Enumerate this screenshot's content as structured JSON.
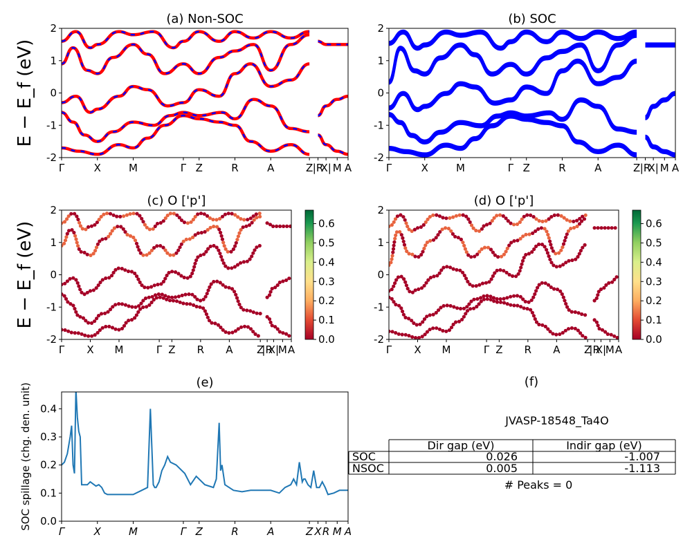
{
  "jid": "JVASP-18548_Ta4O",
  "colors": {
    "nonsoc_line": "#ff0000",
    "nonsoc_dash": "#0000ff",
    "soc_line": "#0000ff",
    "spillage_line": "#1f77b4"
  },
  "band_ylabel": "E − E_f (eV)",
  "kpath": {
    "labels": [
      "Γ",
      "X",
      "M",
      "Γ",
      "Z",
      "R",
      "A",
      "Z",
      "|R",
      "X|",
      "M",
      "A"
    ],
    "positions": [
      0.0,
      0.125,
      0.25,
      0.425,
      0.48,
      0.605,
      0.73,
      0.865,
      0.895,
      0.923,
      0.962,
      1.0
    ]
  },
  "chart_data": [
    {
      "type": "line",
      "panel": "a",
      "title": "(a) Non-SOC",
      "xlabel": "",
      "ylabel": "E − E_f (eV)",
      "ylim": [
        -2,
        2
      ],
      "yticks": [
        -2,
        -1,
        0,
        1,
        2
      ],
      "series": [
        {
          "name": "",
          "style": "red solid + blue dashed overlay",
          "bands": [
            [
              [
                0,
                -1.7
              ],
              [
                0.06,
                -1.8
              ],
              [
                0.125,
                -1.9
              ],
              [
                0.2,
                -1.6
              ],
              [
                0.25,
                -1.7
              ],
              [
                0.3,
                -1.4
              ],
              [
                0.36,
                -1.0
              ],
              [
                0.425,
                -0.7
              ],
              [
                0.48,
                -0.8
              ],
              [
                0.55,
                -0.9
              ],
              [
                0.605,
                -1.0
              ],
              [
                0.66,
                -1.5
              ],
              [
                0.73,
                -1.8
              ],
              [
                0.8,
                -1.6
              ],
              [
                0.865,
                -1.9
              ]
            ],
            [
              [
                0,
                -0.6
              ],
              [
                0.04,
                -0.9
              ],
              [
                0.08,
                -1.3
              ],
              [
                0.125,
                -1.5
              ],
              [
                0.18,
                -1.2
              ],
              [
                0.25,
                -0.9
              ],
              [
                0.32,
                -1.0
              ],
              [
                0.38,
                -0.7
              ],
              [
                0.425,
                -0.6
              ],
              [
                0.48,
                -0.7
              ],
              [
                0.56,
                -0.6
              ],
              [
                0.605,
                -0.8
              ],
              [
                0.67,
                -0.2
              ],
              [
                0.73,
                -0.4
              ],
              [
                0.8,
                -1.1
              ],
              [
                0.865,
                -1.2
              ]
            ],
            [
              [
                0,
                -0.3
              ],
              [
                0.05,
                -0.1
              ],
              [
                0.1,
                -0.6
              ],
              [
                0.125,
                -0.5
              ],
              [
                0.2,
                -0.1
              ],
              [
                0.25,
                0.2
              ],
              [
                0.3,
                0.1
              ],
              [
                0.37,
                -0.4
              ],
              [
                0.425,
                -0.3
              ],
              [
                0.48,
                0.1
              ],
              [
                0.55,
                -0.1
              ],
              [
                0.605,
                0.6
              ],
              [
                0.66,
                0.9
              ],
              [
                0.73,
                0.2
              ],
              [
                0.8,
                0.4
              ],
              [
                0.865,
                0.9
              ]
            ],
            [
              [
                0,
                0.9
              ],
              [
                0.04,
                1.4
              ],
              [
                0.09,
                0.7
              ],
              [
                0.125,
                0.6
              ],
              [
                0.18,
                1.1
              ],
              [
                0.25,
                1.5
              ],
              [
                0.3,
                1.2
              ],
              [
                0.36,
                0.6
              ],
              [
                0.425,
                0.9
              ],
              [
                0.48,
                0.6
              ],
              [
                0.55,
                1.1
              ],
              [
                0.605,
                1.3
              ],
              [
                0.67,
                1.5
              ],
              [
                0.73,
                0.7
              ],
              [
                0.8,
                1.5
              ],
              [
                0.865,
                1.8
              ]
            ],
            [
              [
                0,
                1.6
              ],
              [
                0.05,
                1.9
              ],
              [
                0.1,
                1.4
              ],
              [
                0.125,
                1.5
              ],
              [
                0.2,
                1.9
              ],
              [
                0.25,
                1.8
              ],
              [
                0.32,
                1.9
              ],
              [
                0.39,
                1.4
              ],
              [
                0.425,
                1.6
              ],
              [
                0.48,
                1.9
              ],
              [
                0.55,
                1.6
              ],
              [
                0.605,
                1.9
              ],
              [
                0.67,
                1.7
              ],
              [
                0.73,
                1.9
              ],
              [
                0.8,
                1.7
              ],
              [
                0.865,
                1.9
              ]
            ],
            [
              [
                0.895,
                -1.3
              ],
              [
                0.923,
                -1.6
              ],
              [
                0.962,
                -1.8
              ],
              [
                1.0,
                -1.9
              ]
            ],
            [
              [
                0.895,
                -0.7
              ],
              [
                0.923,
                -0.4
              ],
              [
                0.962,
                -0.2
              ],
              [
                1.0,
                -0.1
              ]
            ],
            [
              [
                0.895,
                1.6
              ],
              [
                0.923,
                1.5
              ],
              [
                0.962,
                1.5
              ],
              [
                1.0,
                1.5
              ]
            ]
          ]
        }
      ]
    },
    {
      "type": "line",
      "panel": "b",
      "title": "(b) SOC",
      "xlabel": "",
      "ylabel": "",
      "ylim": [
        -2,
        2
      ],
      "yticks": [
        -2,
        -1,
        0,
        1,
        2
      ],
      "series": [
        {
          "name": "",
          "style": "blue solid",
          "bands": [
            [
              [
                0,
                -1.75
              ],
              [
                0.06,
                -1.85
              ],
              [
                0.125,
                -1.95
              ],
              [
                0.2,
                -1.65
              ],
              [
                0.25,
                -1.75
              ],
              [
                0.3,
                -1.45
              ],
              [
                0.36,
                -1.05
              ],
              [
                0.425,
                -0.75
              ],
              [
                0.48,
                -0.85
              ],
              [
                0.55,
                -0.95
              ],
              [
                0.605,
                -1.05
              ],
              [
                0.66,
                -1.55
              ],
              [
                0.73,
                -1.85
              ],
              [
                0.8,
                -1.65
              ],
              [
                0.865,
                -1.95
              ]
            ],
            [
              [
                0,
                -0.7
              ],
              [
                0.04,
                -0.95
              ],
              [
                0.08,
                -1.35
              ],
              [
                0.125,
                -1.55
              ],
              [
                0.18,
                -1.25
              ],
              [
                0.25,
                -0.95
              ],
              [
                0.32,
                -1.05
              ],
              [
                0.38,
                -0.75
              ],
              [
                0.425,
                -0.65
              ],
              [
                0.48,
                -0.75
              ],
              [
                0.56,
                -0.65
              ],
              [
                0.605,
                -0.85
              ],
              [
                0.67,
                -0.25
              ],
              [
                0.73,
                -0.45
              ],
              [
                0.8,
                -1.15
              ],
              [
                0.865,
                -1.25
              ]
            ],
            [
              [
                0,
                -0.5
              ],
              [
                0.05,
                -0.05
              ],
              [
                0.1,
                -0.55
              ],
              [
                0.125,
                -0.45
              ],
              [
                0.2,
                -0.05
              ],
              [
                0.25,
                0.25
              ],
              [
                0.3,
                0.15
              ],
              [
                0.37,
                -0.35
              ],
              [
                0.425,
                -0.25
              ],
              [
                0.48,
                0.15
              ],
              [
                0.55,
                -0.05
              ],
              [
                0.605,
                0.65
              ],
              [
                0.66,
                0.95
              ],
              [
                0.73,
                0.25
              ],
              [
                0.8,
                0.45
              ],
              [
                0.865,
                0.95
              ]
            ],
            [
              [
                0,
                0.3
              ],
              [
                0.04,
                1.35
              ],
              [
                0.09,
                0.65
              ],
              [
                0.125,
                0.55
              ],
              [
                0.18,
                1.05
              ],
              [
                0.25,
                1.45
              ],
              [
                0.3,
                1.15
              ],
              [
                0.36,
                0.55
              ],
              [
                0.425,
                0.85
              ],
              [
                0.48,
                0.55
              ],
              [
                0.55,
                1.05
              ],
              [
                0.605,
                1.25
              ],
              [
                0.67,
                1.45
              ],
              [
                0.73,
                0.65
              ],
              [
                0.8,
                1.45
              ],
              [
                0.865,
                1.75
              ]
            ],
            [
              [
                0,
                1.5
              ],
              [
                0.05,
                1.85
              ],
              [
                0.1,
                1.35
              ],
              [
                0.125,
                1.45
              ],
              [
                0.2,
                1.85
              ],
              [
                0.25,
                1.75
              ],
              [
                0.32,
                1.85
              ],
              [
                0.39,
                1.35
              ],
              [
                0.425,
                1.55
              ],
              [
                0.48,
                1.85
              ],
              [
                0.55,
                1.55
              ],
              [
                0.605,
                1.85
              ],
              [
                0.67,
                1.65
              ],
              [
                0.73,
                1.85
              ],
              [
                0.8,
                1.65
              ],
              [
                0.865,
                1.85
              ]
            ],
            [
              [
                0.895,
                -1.4
              ],
              [
                0.923,
                -1.7
              ],
              [
                0.962,
                -1.85
              ],
              [
                1.0,
                -1.95
              ]
            ],
            [
              [
                0.895,
                -0.8
              ],
              [
                0.923,
                -0.45
              ],
              [
                0.962,
                -0.25
              ],
              [
                1.0,
                -0.05
              ]
            ],
            [
              [
                0.895,
                1.45
              ],
              [
                0.923,
                1.45
              ],
              [
                0.962,
                1.45
              ],
              [
                1.0,
                1.45
              ]
            ]
          ]
        }
      ]
    },
    {
      "type": "scatter",
      "panel": "c",
      "title": "(c)  O ['p']",
      "xlabel": "",
      "ylabel": "E − E_f (eV)",
      "ylim": [
        -2,
        2
      ],
      "yticks": [
        -2,
        -1,
        0,
        1,
        2
      ],
      "colorbar": {
        "min": 0.0,
        "max": 0.67,
        "ticks": [
          "0.0",
          "0.1",
          "0.2",
          "0.3",
          "0.4",
          "0.5",
          "0.6"
        ],
        "cmap": "RdYlGn"
      },
      "point_weight_high": [
        0.05,
        0.18
      ],
      "highlight_bands": [
        3,
        4
      ]
    },
    {
      "type": "scatter",
      "panel": "d",
      "title": "(d) O ['p']",
      "xlabel": "",
      "ylabel": "",
      "ylim": [
        -2,
        2
      ],
      "yticks": [
        -2,
        -1,
        0,
        1,
        2
      ],
      "colorbar": {
        "min": 0.0,
        "max": 0.67,
        "ticks": [
          "0.0",
          "0.1",
          "0.2",
          "0.3",
          "0.4",
          "0.5",
          "0.6"
        ],
        "cmap": "RdYlGn"
      },
      "point_weight_high": [
        0.05,
        0.18
      ],
      "highlight_bands": [
        3,
        4
      ]
    },
    {
      "type": "line",
      "panel": "e",
      "title": "(e)",
      "xlabel": "",
      "ylabel": "SOC spillage (chg. den. unit)",
      "ylim": [
        0.0,
        0.46
      ],
      "yticks": [
        "0.0",
        "0.1",
        "0.2",
        "0.3",
        "0.4"
      ],
      "x": [
        0,
        0.01,
        0.02,
        0.03,
        0.035,
        0.04,
        0.045,
        0.05,
        0.055,
        0.06,
        0.065,
        0.07,
        0.075,
        0.08,
        0.085,
        0.09,
        0.1,
        0.12,
        0.13,
        0.14,
        0.15,
        0.16,
        0.17,
        0.18,
        0.19,
        0.2,
        0.22,
        0.25,
        0.28,
        0.3,
        0.31,
        0.32,
        0.325,
        0.33,
        0.34,
        0.35,
        0.36,
        0.37,
        0.38,
        0.4,
        0.43,
        0.45,
        0.47,
        0.5,
        0.53,
        0.54,
        0.55,
        0.555,
        0.56,
        0.57,
        0.6,
        0.63,
        0.66,
        0.7,
        0.73,
        0.76,
        0.78,
        0.8,
        0.8,
        0.81,
        0.82,
        0.83,
        0.84,
        0.845,
        0.85,
        0.86,
        0.87,
        0.88,
        0.89,
        0.9,
        0.91,
        0.92,
        0.93,
        0.95,
        0.97,
        1.0
      ],
      "values": [
        0.2,
        0.21,
        0.24,
        0.3,
        0.34,
        0.2,
        0.17,
        0.47,
        0.37,
        0.32,
        0.3,
        0.13,
        0.13,
        0.13,
        0.13,
        0.13,
        0.14,
        0.125,
        0.13,
        0.12,
        0.1,
        0.095,
        0.095,
        0.095,
        0.095,
        0.095,
        0.095,
        0.095,
        0.11,
        0.12,
        0.4,
        0.13,
        0.12,
        0.12,
        0.14,
        0.18,
        0.2,
        0.23,
        0.21,
        0.2,
        0.17,
        0.13,
        0.16,
        0.13,
        0.12,
        0.15,
        0.35,
        0.18,
        0.2,
        0.13,
        0.11,
        0.105,
        0.11,
        0.11,
        0.11,
        0.1,
        0.12,
        0.13,
        0.13,
        0.15,
        0.13,
        0.21,
        0.14,
        0.15,
        0.15,
        0.13,
        0.12,
        0.18,
        0.12,
        0.12,
        0.14,
        0.12,
        0.095,
        0.1,
        0.11,
        0.11
      ],
      "xtick_labels": [
        "Γ",
        "X",
        "M",
        "Γ",
        "Z",
        "R",
        "A",
        "Z",
        "X",
        "R",
        "M",
        "A"
      ]
    }
  ],
  "table": {
    "title": "JVASP-18548_Ta4O",
    "col_headers": [
      "Dir gap (eV)",
      "Indir gap (eV)"
    ],
    "rows": [
      {
        "label": "SOC",
        "dir": "0.026",
        "indir": "-1.007"
      },
      {
        "label": "NSOC",
        "dir": "0.005",
        "indir": "-1.113"
      }
    ],
    "peaks": "# Peaks = 0",
    "panel_title": "(f)"
  }
}
